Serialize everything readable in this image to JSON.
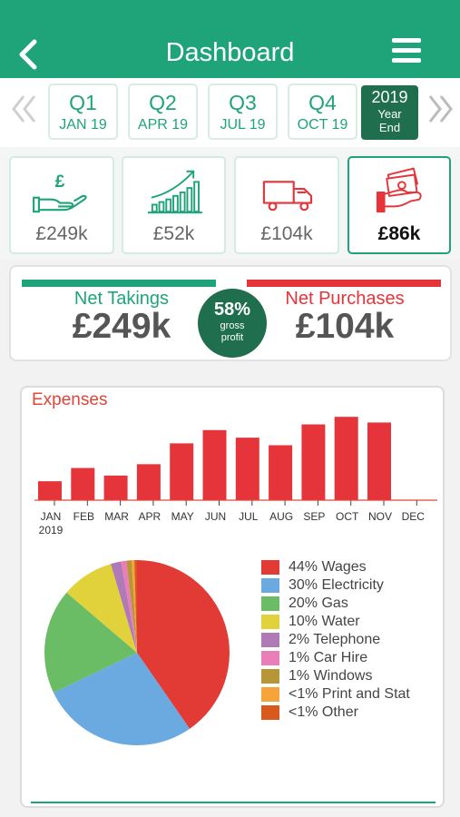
{
  "header": {
    "title": "Dashboard",
    "back_icon": "chevron-left-icon",
    "menu_icon": "hamburger-menu-icon"
  },
  "periods": {
    "tabs": [
      {
        "label": "Q1",
        "sub": "JAN 19"
      },
      {
        "label": "Q2",
        "sub": "APR 19"
      },
      {
        "label": "Q3",
        "sub": "JUL 19"
      },
      {
        "label": "Q4",
        "sub": "OCT 19"
      }
    ],
    "selected": {
      "line1": "2019",
      "line2": "Year",
      "line3": "End"
    }
  },
  "cards": [
    {
      "icon": "hand-pound-icon",
      "value": "£249k"
    },
    {
      "icon": "growth-chart-icon",
      "value": "£52k"
    },
    {
      "icon": "delivery-truck-icon",
      "value": "£104k"
    },
    {
      "icon": "cash-in-hand-icon",
      "value": "£86k",
      "selected": true
    }
  ],
  "summary": {
    "left_label": "Net Takings",
    "left_value": "£249k",
    "gross_pct": "58%",
    "gross_label_1": "gross",
    "gross_label_2": "profit",
    "right_label": "Net Purchases",
    "right_value": "£104k"
  },
  "colors": {
    "brand": "#1fa47a",
    "brand_dark": "#1f6e4e",
    "red": "#e5353a",
    "expense_red": "#e0453a"
  },
  "expenses": {
    "title": "Expenses"
  },
  "chart_data": [
    {
      "type": "bar",
      "categories": [
        "JAN",
        "FEB",
        "MAR",
        "APR",
        "MAY",
        "JUN",
        "JUL",
        "AUG",
        "SEP",
        "OCT",
        "NOV",
        "DEC"
      ],
      "values": [
        10,
        17,
        13,
        19,
        30,
        37,
        33,
        29,
        40,
        44,
        41,
        0
      ],
      "year_label": "2019",
      "ylim": [
        0,
        46
      ],
      "grid": false
    },
    {
      "type": "pie",
      "slices": [
        {
          "label": "44% Wages",
          "value": 44,
          "color": "#e23b35"
        },
        {
          "label": "30% Electricity",
          "value": 30,
          "color": "#6aaae0"
        },
        {
          "label": "20% Gas",
          "value": 20,
          "color": "#6abd64"
        },
        {
          "label": "10% Water",
          "value": 10,
          "color": "#e1d23c"
        },
        {
          "label": "2% Telephone",
          "value": 2,
          "color": "#b07ab7"
        },
        {
          "label": "1% Car Hire",
          "value": 1,
          "color": "#e97fb8"
        },
        {
          "label": "1% Windows",
          "value": 1,
          "color": "#b79638"
        },
        {
          "label": "<1% Print and Stat",
          "value": 0.5,
          "color": "#f5a33a"
        },
        {
          "label": "<1% Other",
          "value": 0.5,
          "color": "#d9591c"
        }
      ],
      "legend": "right"
    }
  ]
}
